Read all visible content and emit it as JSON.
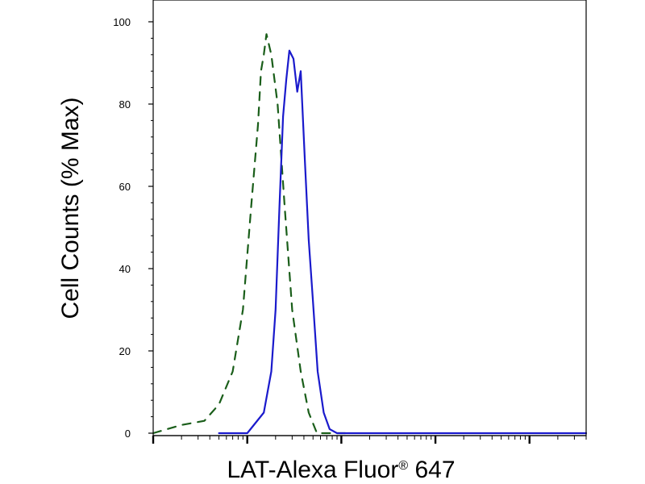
{
  "chart_data": {
    "type": "line",
    "title": "",
    "xlabel": "LAT-Alexa Fluor",
    "xlabel_mark": "®",
    "xlabel_suffix": " 647",
    "ylabel": "Cell Counts (% Max)",
    "xscale": "log",
    "xlim": [
      0.1,
      4000
    ],
    "ylim": [
      0,
      100
    ],
    "yticks": [
      0,
      20,
      40,
      60,
      80,
      100
    ],
    "xticks_major": [
      1,
      10,
      100,
      1000
    ],
    "grid": false,
    "colors": {
      "control": "#1a5e1a",
      "sample": "#1a1acc"
    },
    "series": [
      {
        "style": "dashed",
        "color": "#1a5e1a",
        "x": [
          0.1,
          0.2,
          0.35,
          0.5,
          0.7,
          0.9,
          1.1,
          1.3,
          1.4,
          1.5,
          1.6,
          1.8,
          2.1,
          2.5,
          3.0,
          3.7,
          4.5,
          5.5,
          7.0,
          9.0,
          11
        ],
        "y": [
          0,
          2,
          3,
          7,
          15,
          30,
          55,
          75,
          88,
          92,
          97,
          92,
          80,
          55,
          30,
          15,
          5,
          0,
          0,
          0,
          0
        ]
      },
      {
        "style": "solid",
        "color": "#1a1acc",
        "x": [
          0.5,
          1.0,
          1.5,
          1.8,
          2.0,
          2.2,
          2.4,
          2.6,
          2.8,
          3.1,
          3.4,
          3.7,
          4.1,
          4.5,
          5.0,
          5.6,
          6.5,
          7.5,
          9.0,
          11,
          15,
          100,
          1000,
          4000
        ],
        "y": [
          0,
          0,
          5,
          15,
          30,
          55,
          77,
          86,
          93,
          91,
          83,
          88,
          66,
          47,
          32,
          15,
          5,
          1,
          0,
          0,
          0,
          0,
          0,
          0
        ]
      }
    ]
  }
}
